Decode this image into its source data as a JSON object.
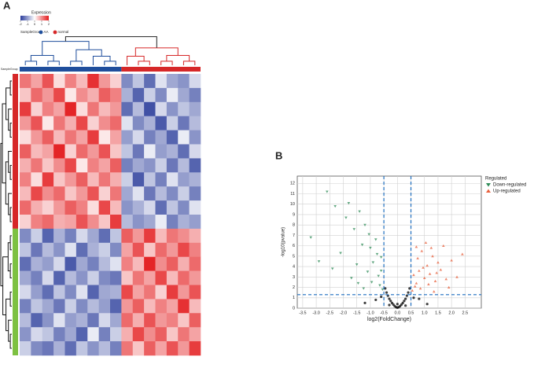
{
  "chart_data": [
    {
      "type": "heatmap",
      "panel": "A",
      "legend_title": "Expression",
      "group_title": "SampleGroup",
      "groups": [
        {
          "name": "AA",
          "color": "#1f4e9c"
        },
        {
          "name": "normal",
          "color": "#d62728"
        }
      ],
      "zlim": [
        -2,
        2
      ],
      "zticks": [
        -2,
        -1,
        0,
        1,
        2
      ],
      "colors": [
        "#2b3d9b",
        "#ffffff",
        "#e31a1c"
      ],
      "values": [
        [
          1.2,
          0.8,
          1.5,
          0.3,
          1.1,
          0.6,
          1.8,
          0.9,
          0.4,
          -1.2,
          -0.6,
          -1.5,
          -0.3,
          -0.9,
          -1.1,
          -0.4
        ],
        [
          0.5,
          1.3,
          0.9,
          1.6,
          0.2,
          1.0,
          0.7,
          1.4,
          1.1,
          -0.8,
          -1.6,
          -0.5,
          -1.2,
          -0.2,
          -0.9,
          -1.3
        ],
        [
          1.7,
          0.4,
          1.1,
          0.8,
          1.9,
          0.3,
          1.2,
          0.6,
          0.9,
          -1.5,
          -0.7,
          -1.8,
          -0.4,
          -1.1,
          -0.6,
          -0.9
        ],
        [
          0.9,
          1.5,
          0.2,
          1.2,
          0.7,
          1.6,
          0.4,
          1.0,
          1.3,
          -0.3,
          -1.2,
          -0.8,
          -1.7,
          -0.5,
          -1.4,
          -0.7
        ],
        [
          0.3,
          0.9,
          1.4,
          0.6,
          1.2,
          0.8,
          1.7,
          0.2,
          0.8,
          -1.0,
          -0.4,
          -1.3,
          -0.9,
          -1.6,
          -0.2,
          -1.1
        ],
        [
          1.4,
          0.6,
          0.8,
          1.9,
          0.4,
          1.3,
          0.9,
          1.5,
          0.5,
          -0.6,
          -1.4,
          -0.2,
          -1.0,
          -0.8,
          -1.5,
          -0.4
        ],
        [
          0.7,
          1.2,
          0.5,
          1.0,
          1.6,
          0.2,
          1.1,
          0.8,
          1.4,
          -1.3,
          -0.9,
          -1.1,
          -0.5,
          -1.4,
          -0.7,
          -1.6
        ],
        [
          1.1,
          0.3,
          1.7,
          0.5,
          0.9,
          1.4,
          0.6,
          1.2,
          0.7,
          -0.5,
          -1.7,
          -0.6,
          -1.3,
          -0.3,
          -1.0,
          -0.8
        ],
        [
          0.6,
          1.6,
          1.0,
          1.3,
          0.5,
          0.9,
          1.5,
          0.4,
          1.2,
          -0.9,
          -0.3,
          -1.4,
          -0.7,
          -1.2,
          -0.5,
          -1.3
        ],
        [
          1.3,
          0.7,
          0.4,
          0.9,
          1.4,
          1.1,
          0.3,
          1.6,
          0.6,
          -1.1,
          -0.8,
          -0.4,
          -1.5,
          -0.6,
          -1.2,
          -0.3
        ],
        [
          0.4,
          1.1,
          1.3,
          0.7,
          0.8,
          1.5,
          1.0,
          0.5,
          1.7,
          -0.7,
          -1.1,
          -0.9,
          -0.2,
          -1.3,
          -0.8,
          -1.0
        ],
        [
          -1.2,
          -0.5,
          -1.6,
          -0.8,
          -1.3,
          -0.4,
          -0.9,
          -1.5,
          -0.6,
          1.4,
          0.9,
          1.7,
          0.6,
          1.2,
          1.0,
          0.7
        ],
        [
          -0.6,
          -1.4,
          -0.7,
          -1.1,
          -0.3,
          -1.5,
          -0.8,
          -0.5,
          -1.2,
          0.8,
          1.5,
          0.5,
          1.3,
          0.9,
          1.6,
          1.1
        ],
        [
          -1.5,
          -0.8,
          -1.0,
          -0.4,
          -1.7,
          -0.9,
          -1.3,
          -0.7,
          -0.3,
          1.1,
          0.6,
          1.9,
          1.0,
          1.4,
          0.7,
          1.3
        ],
        [
          -0.9,
          -1.3,
          -0.4,
          -1.6,
          -0.7,
          -1.1,
          -0.5,
          -1.2,
          -1.4,
          0.5,
          1.2,
          0.8,
          1.6,
          0.6,
          1.3,
          0.9
        ],
        [
          -0.4,
          -1.0,
          -1.5,
          -0.6,
          -1.2,
          -0.3,
          -1.6,
          -0.9,
          -0.8,
          1.6,
          0.8,
          1.2,
          0.4,
          1.7,
          0.9,
          1.5
        ],
        [
          -1.3,
          -0.6,
          -0.9,
          -1.4,
          -0.5,
          -1.2,
          -0.7,
          -1.0,
          -1.6,
          0.9,
          1.4,
          0.6,
          1.1,
          0.8,
          1.8,
          0.6
        ],
        [
          -0.7,
          -1.6,
          -1.1,
          -0.3,
          -1.0,
          -0.8,
          -1.4,
          -0.4,
          -0.9,
          1.3,
          0.7,
          1.5,
          0.9,
          1.1,
          0.5,
          1.4
        ],
        [
          -1.1,
          -0.4,
          -0.6,
          -1.3,
          -0.9,
          -1.6,
          -0.2,
          -1.3,
          -0.5,
          0.7,
          1.6,
          1.0,
          1.4,
          0.5,
          1.2,
          0.8
        ],
        [
          -0.5,
          -1.2,
          -1.4,
          -0.8,
          -1.5,
          -0.6,
          -1.1,
          -0.7,
          -1.3,
          1.2,
          0.5,
          1.4,
          0.8,
          1.5,
          0.9,
          1.7
        ]
      ]
    },
    {
      "type": "scatter",
      "panel": "B",
      "xlabel": "log2(FoldChange)",
      "ylabel": "-log10(pvalue)",
      "legend_title": "Regulated",
      "grid": true,
      "xlim": [
        -3.7,
        3.1
      ],
      "ylim": [
        0,
        12.7
      ],
      "xticks": [
        -3.5,
        {
          "value": -3,
          "label": "-3.0"
        },
        -2.5,
        {
          "value": -2,
          "label": "-2.0"
        },
        -1.5,
        {
          "value": -1,
          "label": "-1.0"
        },
        -0.5,
        {
          "value": 0,
          "label": "0.0"
        },
        0.5,
        {
          "value": 1,
          "label": "1.0"
        },
        1.5,
        {
          "value": 2,
          "label": "2.0"
        },
        2.5
      ],
      "yticks": [
        0,
        1,
        2,
        3,
        4,
        5,
        6,
        7,
        8,
        9,
        10,
        11,
        12
      ],
      "vlines": [
        -0.5,
        0.5
      ],
      "hline": 1.3,
      "threshold_color": "#1f6fc0",
      "series": [
        {
          "name": "Down-regulated",
          "color": "#2e8b57",
          "marker": "triangle-down",
          "x": [
            -3.2,
            -2.9,
            -2.6,
            -2.3,
            -2.1,
            -1.9,
            -1.8,
            -1.6,
            -1.5,
            -1.4,
            -1.3,
            -1.2,
            -1.1,
            -1.0,
            -0.9,
            -0.8,
            -0.7,
            -0.65,
            -0.6,
            -0.55,
            -1.7,
            -2.4,
            -1.25,
            -0.95,
            -0.75,
            -0.6,
            -1.05,
            -1.45
          ],
          "y": [
            6.8,
            4.5,
            11.2,
            9.8,
            5.3,
            8.7,
            10.1,
            7.6,
            4.2,
            9.3,
            6.1,
            8.0,
            3.5,
            5.8,
            4.4,
            6.6,
            3.1,
            2.2,
            4.9,
            1.8,
            2.9,
            3.8,
            1.9,
            2.5,
            5.2,
            3.6,
            7.1,
            2.4
          ]
        },
        {
          "name": "Up-regulated",
          "color": "#e8603c",
          "marker": "triangle-up",
          "x": [
            0.55,
            0.6,
            0.7,
            0.75,
            0.8,
            0.9,
            1.0,
            1.05,
            1.1,
            1.2,
            1.3,
            1.4,
            1.5,
            1.6,
            1.7,
            1.8,
            2.0,
            2.2,
            2.4,
            0.65,
            0.85,
            0.95,
            1.15,
            1.25,
            1.35,
            1.45,
            0.7,
            1.9
          ],
          "y": [
            1.7,
            3.2,
            2.4,
            4.8,
            3.6,
            5.5,
            2.9,
            6.3,
            4.1,
            3.3,
            5.0,
            2.6,
            4.4,
            3.7,
            6.0,
            2.8,
            4.6,
            3.0,
            5.2,
            2.1,
            1.9,
            3.9,
            2.3,
            5.8,
            1.6,
            3.4,
            5.9,
            2.0
          ]
        },
        {
          "color": "#000000",
          "marker": "circle",
          "x": [
            -0.45,
            -0.4,
            -0.35,
            -0.3,
            -0.25,
            -0.2,
            -0.15,
            -0.1,
            -0.05,
            0,
            0.05,
            0.1,
            0.15,
            0.2,
            0.25,
            0.3,
            0.35,
            0.4,
            0.45,
            -0.8,
            -1.2,
            0.8,
            1.1,
            -0.6,
            0.6,
            -0.3,
            0.3,
            0
          ],
          "y": [
            1.9,
            1.5,
            1.2,
            0.9,
            0.7,
            0.5,
            0.35,
            0.2,
            0.1,
            0.05,
            0.1,
            0.2,
            0.35,
            0.5,
            0.7,
            0.9,
            1.2,
            1.5,
            1.9,
            0.8,
            0.5,
            0.9,
            0.4,
            1.1,
            1.0,
            0.3,
            0.25,
            0.4
          ]
        }
      ]
    }
  ]
}
